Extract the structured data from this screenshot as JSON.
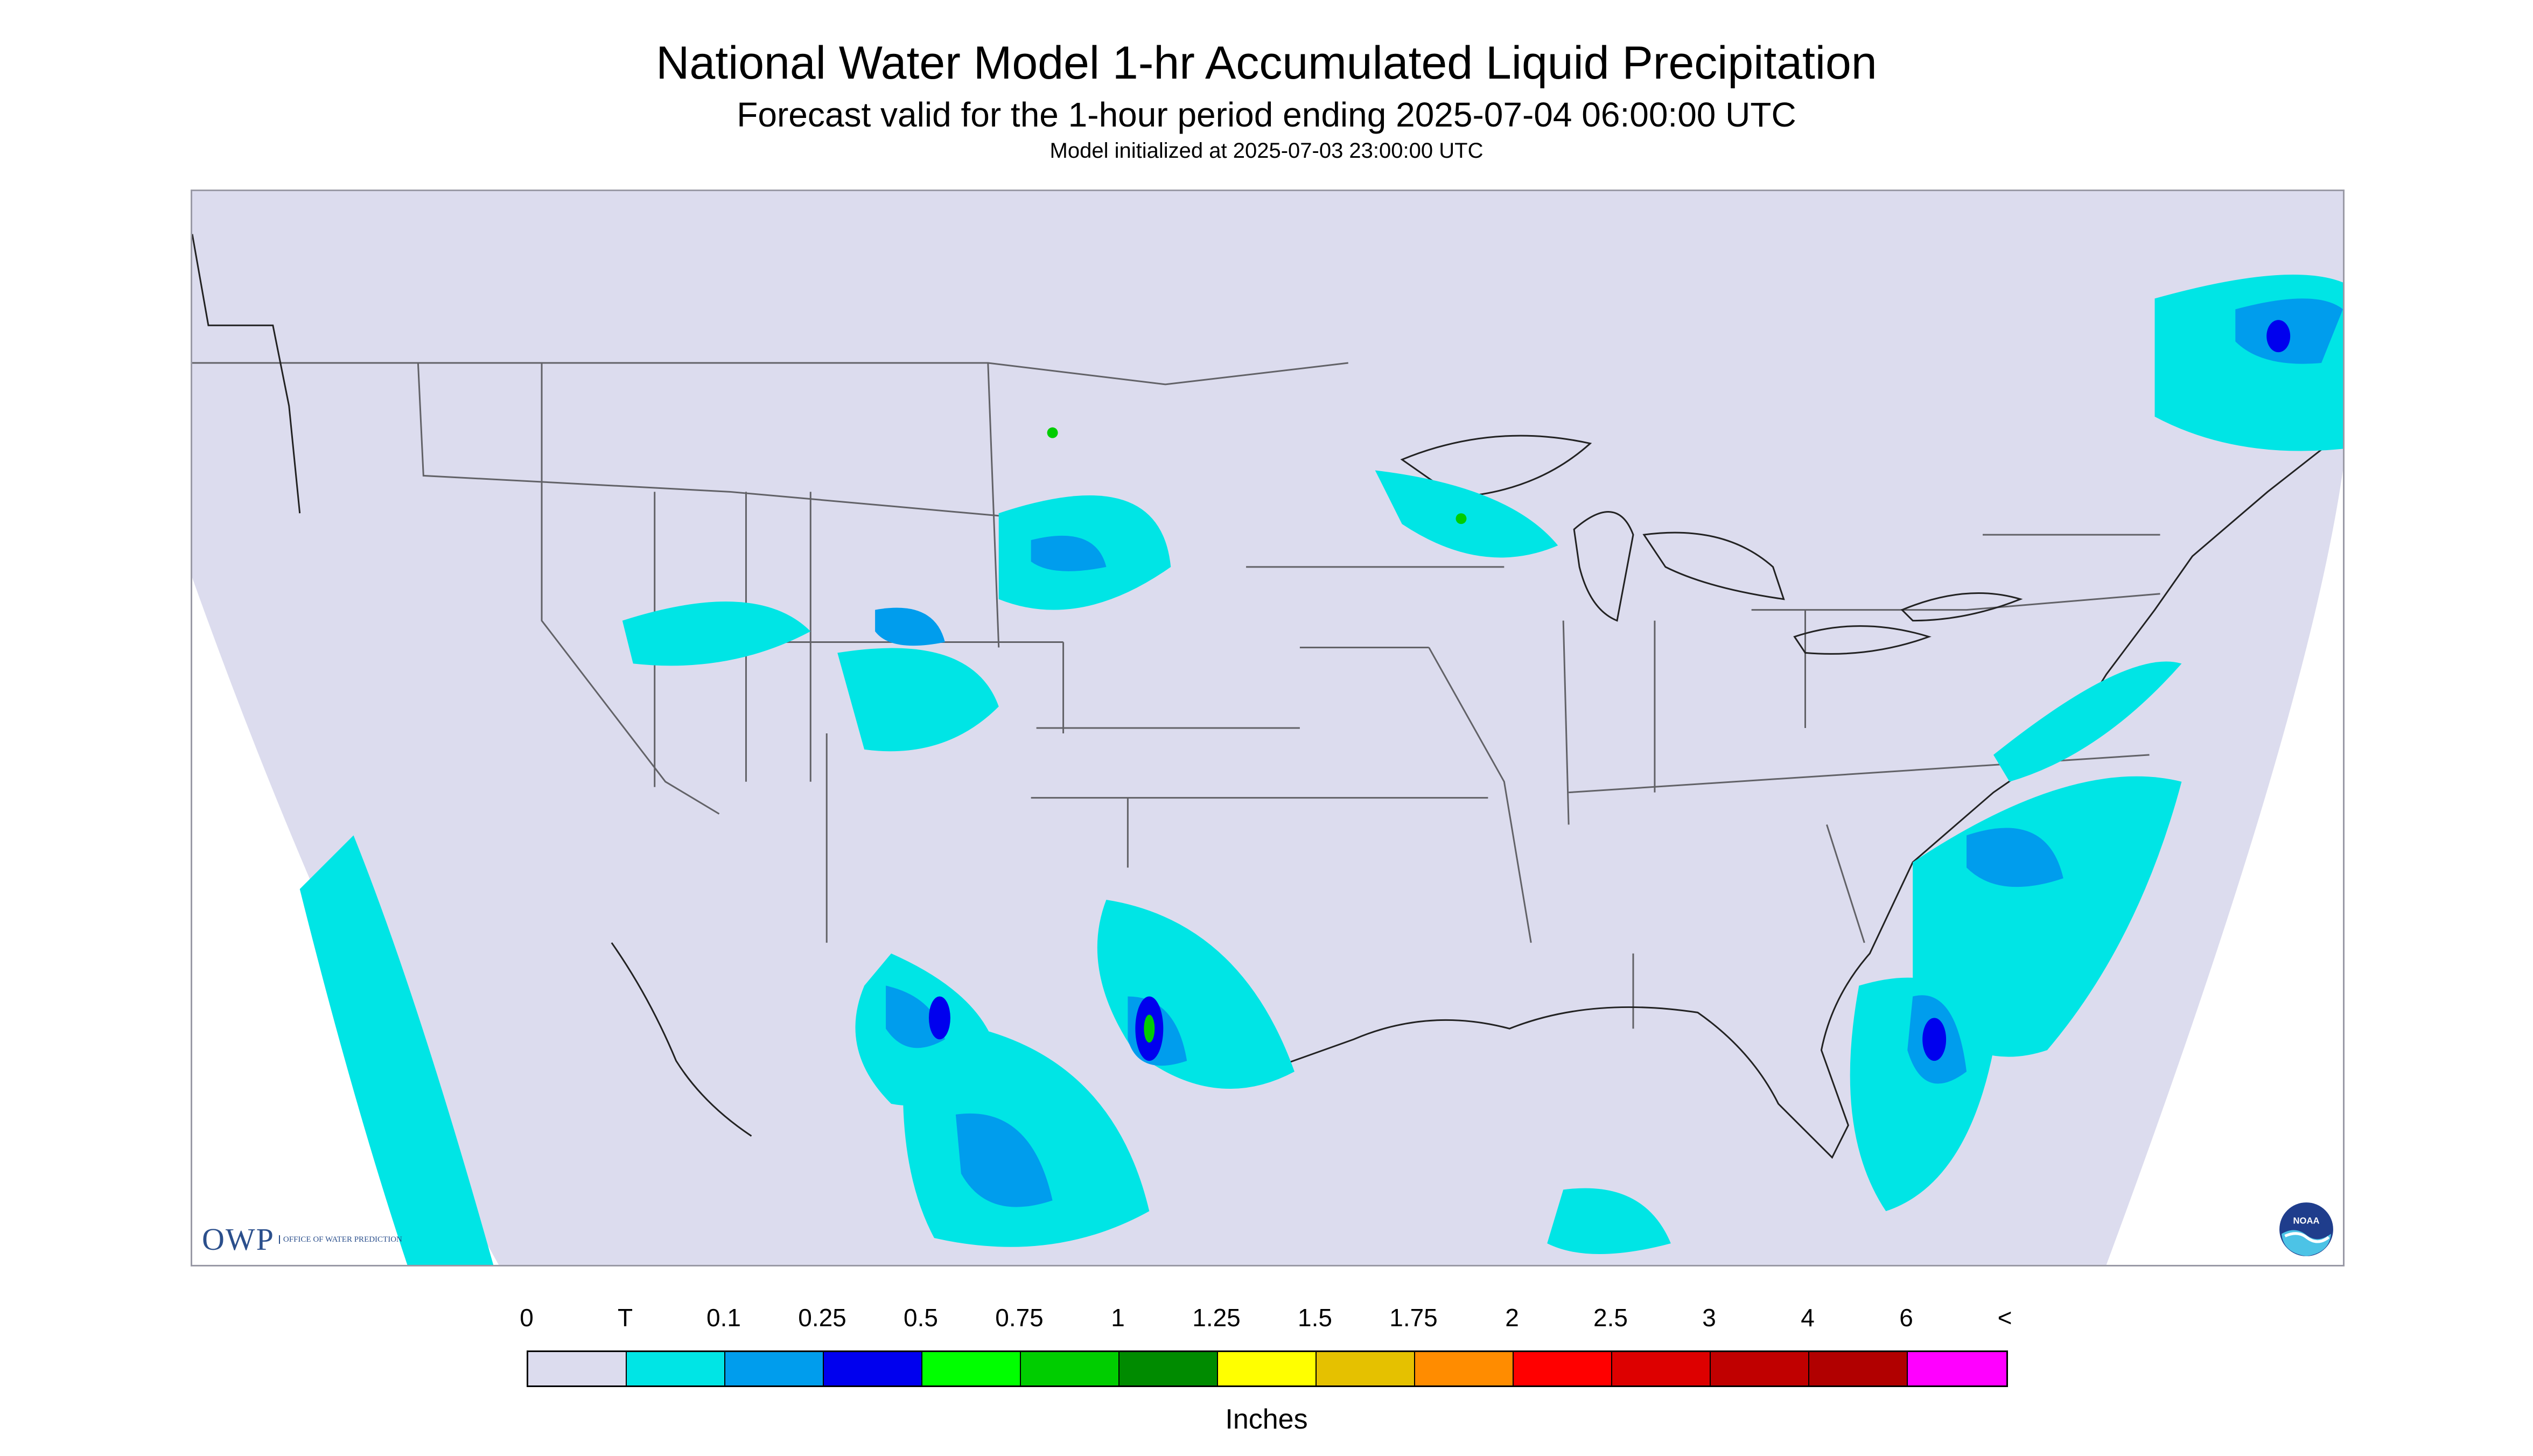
{
  "header": {
    "title": "National Water Model 1-hr Accumulated Liquid Precipitation",
    "subtitle": "Forecast valid for the 1-hour period ending 2025-07-04 06:00:00 UTC",
    "init_line": "Model initialized at 2025-07-03 23:00:00 UTC"
  },
  "map": {
    "background_color": "#dcdcee",
    "outside_domain_color": "#ffffff",
    "trace_color": "#00e5e5",
    "light_color": "#009ded",
    "heavy_color": "#0000ee",
    "peak_color": "#00cd00"
  },
  "logos": {
    "owp_text": "OWP",
    "owp_sub": "OFFICE OF WATER PREDICTION",
    "noaa_text": "NOAA"
  },
  "legend": {
    "labels": [
      "0",
      "T",
      "0.1",
      "0.25",
      "0.5",
      "0.75",
      "1",
      "1.25",
      "1.5",
      "1.75",
      "2",
      "2.5",
      "3",
      "4",
      "6",
      "<"
    ],
    "colors": [
      "#dcdcee",
      "#00e5e5",
      "#009ded",
      "#0000ee",
      "#00ff00",
      "#00cd00",
      "#008b00",
      "#ffff00",
      "#e5c100",
      "#ff8c00",
      "#ff0000",
      "#dd0000",
      "#c00000",
      "#b10000",
      "#ff00ff",
      "#9955c9"
    ],
    "units": "Inches"
  }
}
